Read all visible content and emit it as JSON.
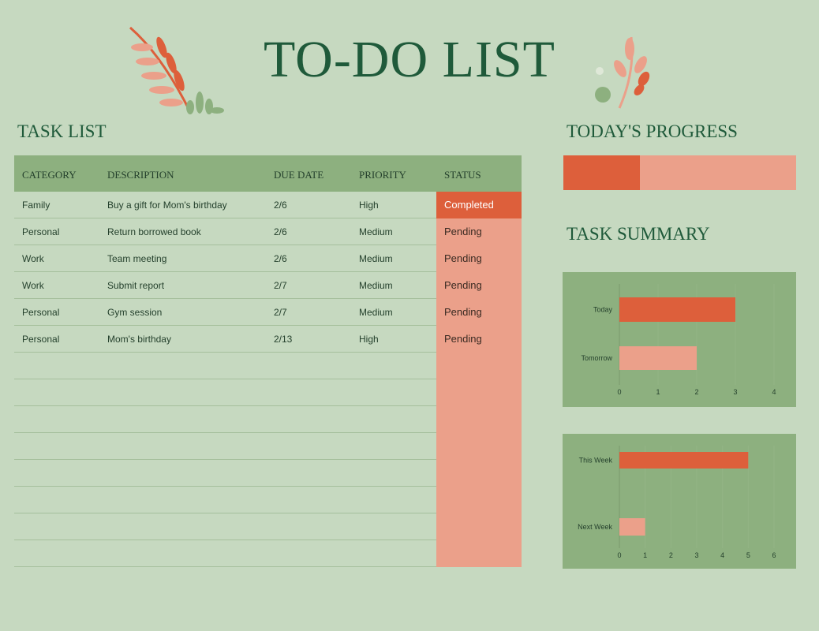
{
  "title": "TO-DO LIST",
  "task_list": {
    "heading": "TASK LIST",
    "columns": [
      "CATEGORY",
      "DESCRIPTION",
      "DUE DATE",
      "PRIORITY",
      "STATUS"
    ],
    "rows": [
      {
        "category": "Family",
        "description": "Buy a gift for Mom's birthday",
        "due": "2/6",
        "priority": "High",
        "status": "Completed"
      },
      {
        "category": "Personal",
        "description": "Return borrowed book",
        "due": "2/6",
        "priority": "Medium",
        "status": "Pending"
      },
      {
        "category": "Work",
        "description": "Team meeting",
        "due": "2/6",
        "priority": "Medium",
        "status": "Pending"
      },
      {
        "category": "Work",
        "description": "Submit report",
        "due": "2/7",
        "priority": "Medium",
        "status": "Pending"
      },
      {
        "category": "Personal",
        "description": "Gym session",
        "due": "2/7",
        "priority": "Medium",
        "status": "Pending"
      },
      {
        "category": "Personal",
        "description": "Mom's birthday",
        "due": "2/13",
        "priority": "High",
        "status": "Pending"
      }
    ],
    "empty_rows": 8
  },
  "progress": {
    "heading": "TODAY'S PROGRESS",
    "fraction": 0.33
  },
  "summary": {
    "heading": "TASK SUMMARY"
  },
  "colors": {
    "accent": "#dd5f3b",
    "light_accent": "#eba08a",
    "header_green": "#8db07f",
    "background": "#c6d9c0",
    "text": "#1f5a3a"
  },
  "chart_data": [
    {
      "type": "bar",
      "orientation": "horizontal",
      "categories": [
        "Today",
        "Tomorrow"
      ],
      "values": [
        3,
        2
      ],
      "xlim": [
        0,
        4
      ],
      "ticks": [
        "0",
        "1",
        "2",
        "3",
        "4"
      ]
    },
    {
      "type": "bar",
      "orientation": "horizontal",
      "categories": [
        "This Week",
        "Next Week"
      ],
      "values": [
        5,
        1
      ],
      "xlim": [
        0,
        6
      ],
      "ticks": [
        "0",
        "1",
        "2",
        "3",
        "4",
        "5",
        "6"
      ]
    }
  ]
}
